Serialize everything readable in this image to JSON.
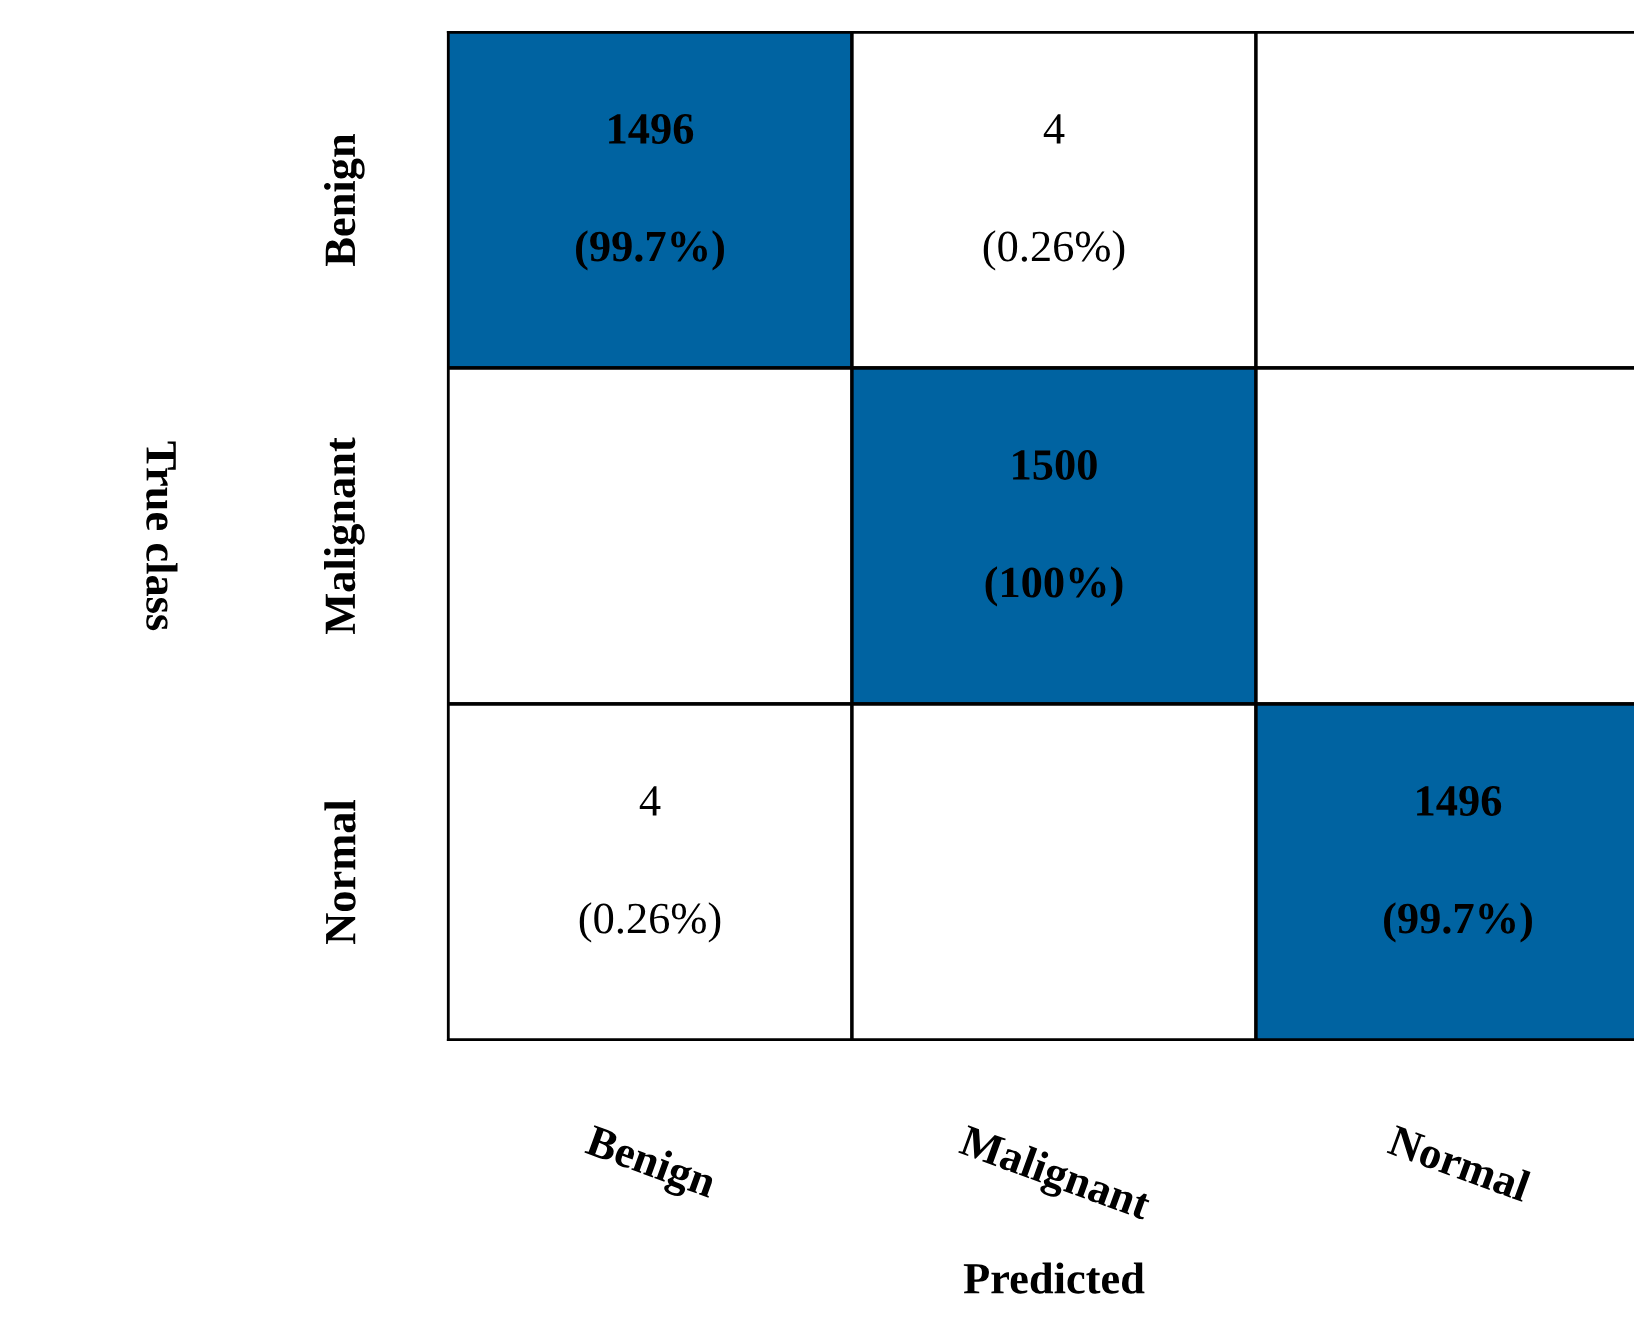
{
  "chart_data": {
    "type": "heatmap",
    "xlabel": "Predicted",
    "ylabel": "True class",
    "categories": [
      "Benign",
      "Malignant",
      "Normal"
    ],
    "y_categories": [
      "Benign",
      "Malignant",
      "Normal"
    ],
    "cells": [
      [
        1496,
        4,
        null
      ],
      [
        null,
        1500,
        null
      ],
      [
        4,
        null,
        1496
      ]
    ],
    "data_labels": true,
    "annotations": [
      "(99.7%)",
      "(0.26%)",
      "(100%)",
      "(0.26%)",
      "(99.7%)"
    ],
    "color": "#0063a1",
    "grid": false
  }
}
